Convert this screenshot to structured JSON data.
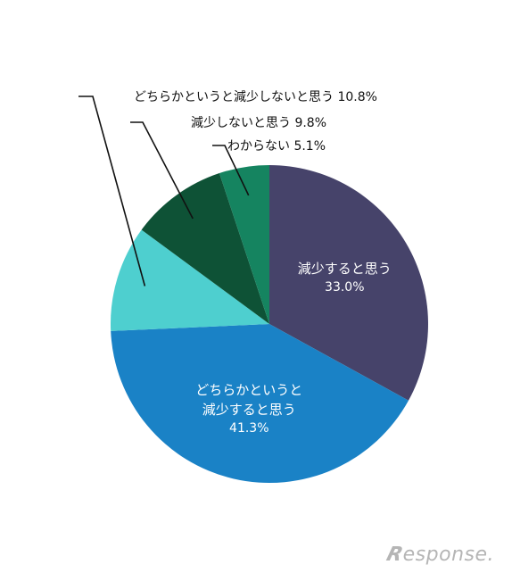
{
  "chart_data": {
    "type": "pie",
    "title": "",
    "start": "12 o'clock, clockwise",
    "slices": [
      {
        "label_lines": [
          "減少すると思う"
        ],
        "value_text": "33.0%",
        "value": 33.0,
        "color": "#46436a",
        "label_style": "inside"
      },
      {
        "label_lines": [
          "どちらかというと",
          "減少すると思う"
        ],
        "value_text": "41.3%",
        "value": 41.3,
        "color": "#1a82c6",
        "label_style": "inside"
      },
      {
        "label_lines": [
          "どちらかというと減少しないと思う"
        ],
        "value_text": "10.8%",
        "value": 10.8,
        "color": "#4ecfcf",
        "label_style": "callout"
      },
      {
        "label_lines": [
          "減少しないと思う"
        ],
        "value_text": "9.8%",
        "value": 9.8,
        "color": "#0e5236",
        "label_style": "callout"
      },
      {
        "label_lines": [
          "わからない"
        ],
        "value_text": "5.1%",
        "value": 5.1,
        "color": "#158460",
        "label_style": "callout"
      }
    ]
  },
  "watermark": {
    "text": "Response."
  }
}
